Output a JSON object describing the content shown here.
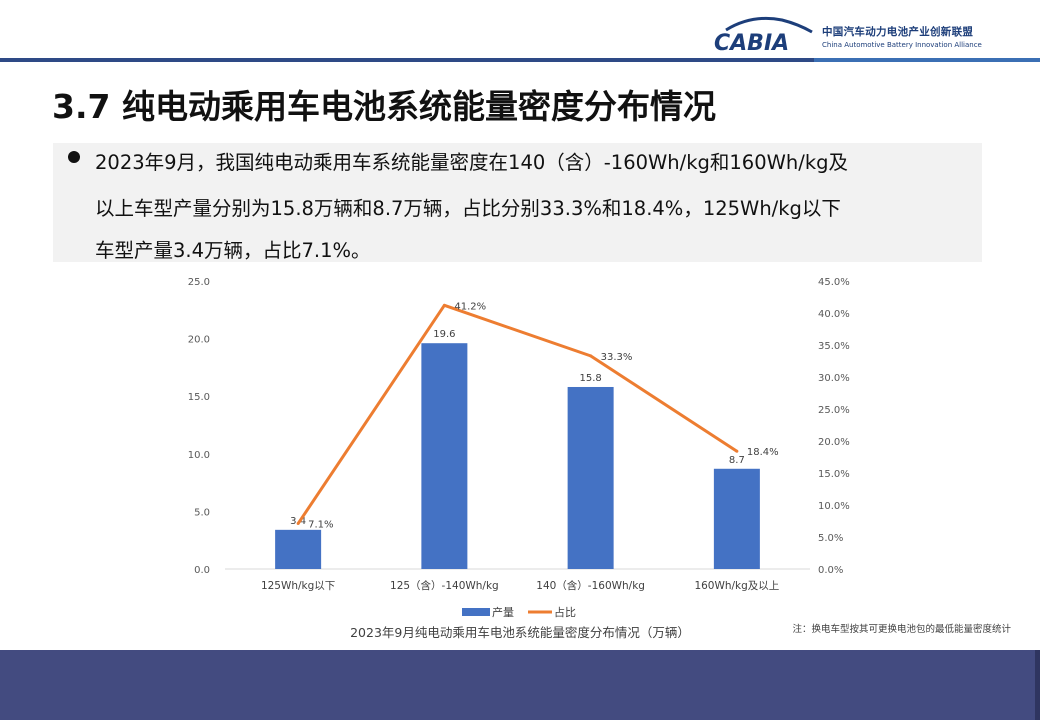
{
  "header": {
    "logo_mark": "CABIA",
    "org_name_cn": "中国汽车动力电池产业创新联盟",
    "org_name_en": "China Automotive Battery Innovation Alliance"
  },
  "slide": {
    "title": "3.7 纯电动乘用车电池系统能量密度分布情况",
    "summary_lines": [
      "2023年9月，我国纯电动乘用车系统能量密度在140（含）-160Wh/kg和160Wh/kg及",
      "以上车型产量分别为15.8万辆和8.7万辆，占比分别33.3%和18.4%，125Wh/kg以下",
      "车型产量3.4万辆，占比7.1%。"
    ]
  },
  "chart_data": {
    "type": "bar",
    "title": "2023年9月纯电动乘用车电池系统能量密度分布情况（万辆）",
    "note": "注：换电车型按其可更换电池包的最低能量密度统计",
    "categories": [
      "125Wh/kg以下",
      "125（含）-140Wh/kg",
      "140（含）-160Wh/kg",
      "160Wh/kg及以上"
    ],
    "series": [
      {
        "name": "产量",
        "type": "bar",
        "axis": "left",
        "color": "#4472c4",
        "values": [
          3.4,
          19.6,
          15.8,
          8.7
        ],
        "labels": [
          "3.4",
          "19.6",
          "15.8",
          "8.7"
        ]
      },
      {
        "name": "占比",
        "type": "line",
        "axis": "right",
        "color": "#ed7d31",
        "values": [
          7.1,
          41.2,
          33.3,
          18.4
        ],
        "labels": [
          "7.1%",
          "41.2%",
          "33.3%",
          "18.4%"
        ]
      }
    ],
    "y_left": {
      "min": 0,
      "max": 25,
      "ticks": [
        "0.0",
        "5.0",
        "10.0",
        "15.0",
        "20.0",
        "25.0"
      ]
    },
    "y_right": {
      "min": 0,
      "max": 45,
      "ticks": [
        "0.0%",
        "5.0%",
        "10.0%",
        "15.0%",
        "20.0%",
        "25.0%",
        "30.0%",
        "35.0%",
        "40.0%",
        "45.0%"
      ]
    },
    "grid": false,
    "legend_position": "bottom"
  }
}
